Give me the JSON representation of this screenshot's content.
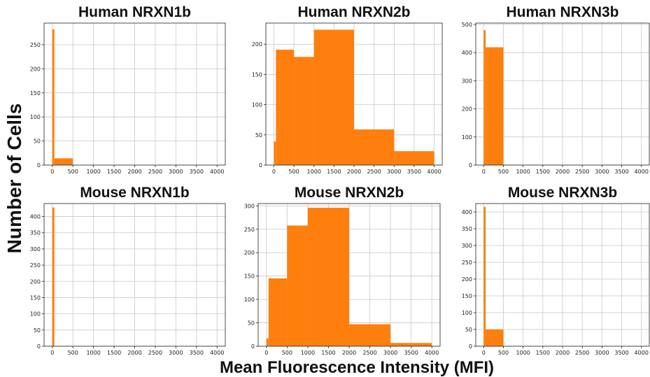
{
  "figure": {
    "xlabel": "Mean Fluorescence Intensity (MFI)",
    "ylabel": "Number of Cells",
    "bar_color": "#ff7f0e"
  },
  "chart_data": [
    {
      "type": "bar",
      "title": "Human NRXN1b",
      "xlim": [
        -200,
        4200
      ],
      "ylim": [
        0,
        295
      ],
      "xticks": [
        0,
        500,
        1000,
        1500,
        2000,
        2500,
        3000,
        3500,
        4000
      ],
      "yticks": [
        0,
        50,
        100,
        150,
        200,
        250
      ],
      "grid": true,
      "bins": [
        {
          "x0": 0,
          "x1": 50,
          "value": 282
        },
        {
          "x0": 50,
          "x1": 500,
          "value": 14
        }
      ]
    },
    {
      "type": "bar",
      "title": "Human NRXN2b",
      "xlim": [
        -200,
        4200
      ],
      "ylim": [
        0,
        235
      ],
      "xticks": [
        0,
        500,
        1000,
        1500,
        2000,
        2500,
        3000,
        3500,
        4000
      ],
      "yticks": [
        0,
        50,
        100,
        150,
        200
      ],
      "grid": true,
      "bins": [
        {
          "x0": 0,
          "x1": 50,
          "value": 39
        },
        {
          "x0": 50,
          "x1": 500,
          "value": 191
        },
        {
          "x0": 500,
          "x1": 1000,
          "value": 179
        },
        {
          "x0": 1000,
          "x1": 2000,
          "value": 224
        },
        {
          "x0": 2000,
          "x1": 3000,
          "value": 59
        },
        {
          "x0": 3000,
          "x1": 4000,
          "value": 23
        }
      ]
    },
    {
      "type": "bar",
      "title": "Human NRXN3b",
      "xlim": [
        -200,
        4200
      ],
      "ylim": [
        0,
        505
      ],
      "xticks": [
        0,
        500,
        1000,
        1500,
        2000,
        2500,
        3000,
        3500,
        4000
      ],
      "yticks": [
        0,
        100,
        200,
        300,
        400,
        500
      ],
      "grid": true,
      "bins": [
        {
          "x0": 0,
          "x1": 50,
          "value": 480
        },
        {
          "x0": 50,
          "x1": 500,
          "value": 419
        },
        {
          "x0": 500,
          "x1": 1000,
          "value": 1
        },
        {
          "x0": 1000,
          "x1": 2000,
          "value": 1
        },
        {
          "x0": 3000,
          "x1": 4000,
          "value": 1
        }
      ]
    },
    {
      "type": "bar",
      "title": "Mouse NRXN1b",
      "xlim": [
        -200,
        4200
      ],
      "ylim": [
        0,
        440
      ],
      "xticks": [
        0,
        500,
        1000,
        1500,
        2000,
        2500,
        3000,
        3500,
        4000
      ],
      "yticks": [
        0,
        50,
        100,
        150,
        200,
        250,
        300,
        350,
        400
      ],
      "grid": true,
      "bins": [
        {
          "x0": 0,
          "x1": 50,
          "value": 428
        },
        {
          "x0": 50,
          "x1": 500,
          "value": 1
        }
      ]
    },
    {
      "type": "bar",
      "title": "Mouse NRXN2b",
      "xlim": [
        -200,
        4200
      ],
      "ylim": [
        0,
        305
      ],
      "xticks": [
        0,
        500,
        1000,
        1500,
        2000,
        2500,
        3000,
        3500,
        4000
      ],
      "yticks": [
        0,
        50,
        100,
        150,
        200,
        250,
        300
      ],
      "grid": true,
      "bins": [
        {
          "x0": 0,
          "x1": 50,
          "value": 17
        },
        {
          "x0": 50,
          "x1": 500,
          "value": 145
        },
        {
          "x0": 500,
          "x1": 1000,
          "value": 258
        },
        {
          "x0": 1000,
          "x1": 2000,
          "value": 296
        },
        {
          "x0": 2000,
          "x1": 3000,
          "value": 47
        },
        {
          "x0": 3000,
          "x1": 4000,
          "value": 7
        }
      ]
    },
    {
      "type": "bar",
      "title": "Mouse NRXN3b",
      "xlim": [
        -200,
        4200
      ],
      "ylim": [
        0,
        425
      ],
      "xticks": [
        0,
        500,
        1000,
        1500,
        2000,
        2500,
        3000,
        3500,
        4000
      ],
      "yticks": [
        0,
        50,
        100,
        150,
        200,
        250,
        300,
        350,
        400
      ],
      "grid": true,
      "bins": [
        {
          "x0": 0,
          "x1": 50,
          "value": 415
        },
        {
          "x0": 50,
          "x1": 500,
          "value": 50
        }
      ]
    }
  ]
}
